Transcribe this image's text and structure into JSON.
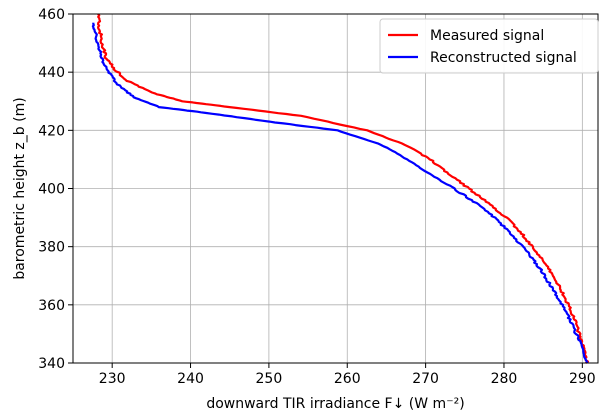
{
  "chart_data": {
    "type": "line",
    "title": "",
    "xlabel": "downward TIR irradiance F↓ (W m⁻²)",
    "ylabel": "barometric height z_b (m)",
    "xlim": [
      225,
      292
    ],
    "ylim": [
      340,
      460
    ],
    "xticks": [
      230,
      240,
      250,
      260,
      270,
      280,
      290
    ],
    "yticks": [
      340,
      360,
      380,
      400,
      420,
      440,
      460
    ],
    "grid": true,
    "legend_position": "top-right",
    "series": [
      {
        "name": "Measured signal",
        "color": "#ff0000",
        "points": [
          [
            290.6,
            340
          ],
          [
            290.2,
            345
          ],
          [
            289.6,
            350
          ],
          [
            289.0,
            355
          ],
          [
            288.2,
            360
          ],
          [
            287.3,
            365
          ],
          [
            286.3,
            370
          ],
          [
            285.0,
            375
          ],
          [
            283.6,
            380
          ],
          [
            282.1,
            385
          ],
          [
            280.3,
            390
          ],
          [
            278.0,
            395
          ],
          [
            275.5,
            400
          ],
          [
            273.0,
            405
          ],
          [
            270.6,
            410
          ],
          [
            267.4,
            415
          ],
          [
            262.5,
            420
          ],
          [
            254.0,
            425
          ],
          [
            245.0,
            428
          ],
          [
            239.0,
            430
          ],
          [
            235.0,
            433
          ],
          [
            232.0,
            437
          ],
          [
            230.3,
            441
          ],
          [
            229.2,
            445
          ],
          [
            228.7,
            450
          ],
          [
            228.4,
            455
          ],
          [
            228.2,
            460
          ]
        ]
      },
      {
        "name": "Reconstructed signal",
        "color": "#0000ff",
        "points": [
          [
            290.5,
            340
          ],
          [
            290.0,
            345
          ],
          [
            289.2,
            350
          ],
          [
            288.4,
            355
          ],
          [
            287.4,
            360
          ],
          [
            286.3,
            365
          ],
          [
            285.2,
            370
          ],
          [
            283.9,
            375
          ],
          [
            282.4,
            380
          ],
          [
            280.7,
            385
          ],
          [
            278.8,
            390
          ],
          [
            276.4,
            395
          ],
          [
            273.6,
            400
          ],
          [
            270.6,
            405
          ],
          [
            267.6,
            410
          ],
          [
            264.4,
            415
          ],
          [
            258.8,
            420
          ],
          [
            250.0,
            423
          ],
          [
            242.0,
            426
          ],
          [
            236.0,
            428
          ],
          [
            233.0,
            431
          ],
          [
            231.0,
            435
          ],
          [
            229.8,
            439
          ],
          [
            228.9,
            443
          ],
          [
            228.3,
            448
          ],
          [
            227.9,
            453
          ],
          [
            227.6,
            457
          ]
        ]
      }
    ]
  }
}
